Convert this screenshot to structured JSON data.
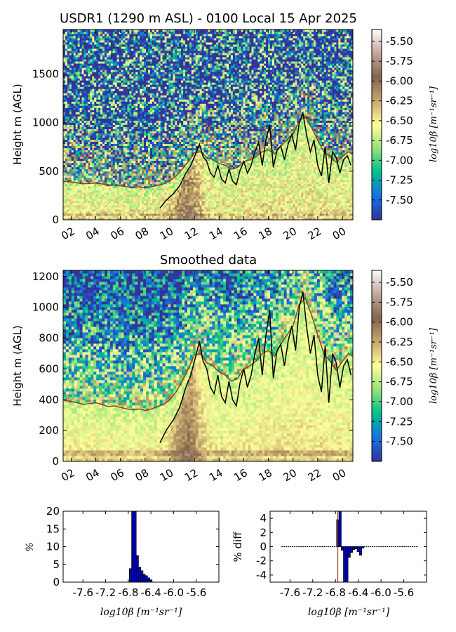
{
  "colors": {
    "colormap": [
      "#333399",
      "#1672e4",
      "#00c08a",
      "#95e17a",
      "#ffff99",
      "#c8a86e",
      "#82654e",
      "#c2a79d",
      "#fdfcfc"
    ],
    "bl_brown": "#8b4513",
    "bl_black": "#000000",
    "hist_fill": "#0000cc"
  },
  "chart_data": [
    {
      "type": "heatmap",
      "title": "USDR1 (1290 m ASL) - 0100 Local 15 Apr 2025",
      "ylabel": "Height m (AGL)",
      "xticks": [
        "02",
        "04",
        "06",
        "08",
        "10",
        "12",
        "14",
        "16",
        "18",
        "20",
        "22",
        "00"
      ],
      "yticks": [
        "0",
        "500",
        "1000",
        "1500"
      ],
      "ylim": [
        0,
        1960
      ],
      "xlim_hours": [
        1.35,
        24.85
      ],
      "colorbar": {
        "label": "log10β [m⁻¹sr⁻¹]",
        "range": [
          -7.75,
          -5.35
        ],
        "ticks": [
          "-5.50",
          "-5.75",
          "-6.00",
          "-6.25",
          "-6.50",
          "-6.75",
          "-7.00",
          "-7.25",
          "-7.50"
        ]
      },
      "series": [
        {
          "values": [
            [
              1.4,
              395
            ],
            [
              2,
              390
            ],
            [
              2.5,
              380
            ],
            [
              3,
              370
            ],
            [
              3.5,
              375
            ],
            [
              4,
              380
            ],
            [
              4.5,
              370
            ],
            [
              5,
              355
            ],
            [
              5.5,
              360
            ],
            [
              6,
              350
            ],
            [
              6.5,
              340
            ],
            [
              7,
              335
            ],
            [
              7.5,
              340
            ],
            [
              8,
              330
            ],
            [
              8.5,
              340
            ],
            [
              9,
              355
            ],
            [
              9.5,
              370
            ],
            [
              10,
              400
            ],
            [
              10.5,
              450
            ],
            [
              11,
              520
            ],
            [
              11.5,
              600
            ],
            [
              12,
              690
            ],
            [
              12.5,
              700
            ],
            [
              13,
              640
            ],
            [
              13.5,
              620
            ],
            [
              14,
              580
            ],
            [
              14.5,
              560
            ],
            [
              15,
              520
            ],
            [
              15.5,
              540
            ],
            [
              16,
              600
            ],
            [
              16.5,
              620
            ],
            [
              17,
              650
            ],
            [
              17.5,
              700
            ],
            [
              18,
              720
            ],
            [
              18.5,
              680
            ],
            [
              19,
              760
            ],
            [
              19.5,
              820
            ],
            [
              20,
              880
            ],
            [
              20.5,
              1020
            ],
            [
              21,
              1060
            ],
            [
              21.5,
              950
            ],
            [
              22,
              820
            ],
            [
              22.5,
              700
            ],
            [
              23,
              650
            ],
            [
              23.5,
              590
            ],
            [
              24,
              650
            ],
            [
              24.5,
              700
            ],
            [
              24.85,
              680
            ]
          ]
        },
        {
          "values": [
            [
              9.2,
              120
            ],
            [
              9.7,
              200
            ],
            [
              10.3,
              270
            ],
            [
              10.8,
              350
            ],
            [
              11.3,
              480
            ],
            [
              11.7,
              560
            ],
            [
              12.1,
              680
            ],
            [
              12.4,
              780
            ],
            [
              12.7,
              650
            ],
            [
              13,
              600
            ],
            [
              13.3,
              480
            ],
            [
              13.6,
              440
            ],
            [
              13.9,
              560
            ],
            [
              14.2,
              420
            ],
            [
              14.5,
              380
            ],
            [
              14.8,
              520
            ],
            [
              15.1,
              400
            ],
            [
              15.4,
              360
            ],
            [
              15.7,
              510
            ],
            [
              16,
              600
            ],
            [
              16.3,
              480
            ],
            [
              16.6,
              560
            ],
            [
              16.9,
              700
            ],
            [
              17.2,
              800
            ],
            [
              17.5,
              560
            ],
            [
              17.8,
              820
            ],
            [
              18.1,
              980
            ],
            [
              18.4,
              540
            ],
            [
              18.7,
              720
            ],
            [
              19,
              760
            ],
            [
              19.3,
              620
            ],
            [
              19.6,
              780
            ],
            [
              19.9,
              880
            ],
            [
              20.2,
              720
            ],
            [
              20.5,
              1000
            ],
            [
              20.8,
              1100
            ],
            [
              21.1,
              870
            ],
            [
              21.4,
              700
            ],
            [
              21.7,
              820
            ],
            [
              22,
              560
            ],
            [
              22.3,
              450
            ],
            [
              22.6,
              750
            ],
            [
              22.9,
              380
            ],
            [
              23.2,
              700
            ],
            [
              23.5,
              640
            ],
            [
              23.8,
              480
            ],
            [
              24.1,
              620
            ],
            [
              24.4,
              660
            ],
            [
              24.7,
              560
            ]
          ]
        }
      ]
    },
    {
      "type": "heatmap",
      "title": "Smoothed data",
      "ylabel": "Height m (AGL)",
      "xticks": [
        "02",
        "04",
        "06",
        "08",
        "10",
        "12",
        "14",
        "16",
        "18",
        "20",
        "22",
        "00"
      ],
      "yticks": [
        "0",
        "200",
        "400",
        "600",
        "800",
        "1000",
        "1200"
      ],
      "ylim": [
        0,
        1240
      ],
      "xlim_hours": [
        1.35,
        24.85
      ],
      "colorbar": {
        "label": "log10β [m⁻¹sr⁻¹]",
        "range": [
          -7.75,
          -5.35
        ],
        "ticks": [
          "-5.50",
          "-5.75",
          "-6.00",
          "-6.25",
          "-6.50",
          "-6.75",
          "-7.00",
          "-7.25",
          "-7.50"
        ]
      },
      "series": [
        {
          "values": [
            [
              1.4,
              395
            ],
            [
              2,
              390
            ],
            [
              2.5,
              380
            ],
            [
              3,
              370
            ],
            [
              3.5,
              375
            ],
            [
              4,
              380
            ],
            [
              4.5,
              370
            ],
            [
              5,
              355
            ],
            [
              5.5,
              360
            ],
            [
              6,
              350
            ],
            [
              6.5,
              340
            ],
            [
              7,
              335
            ],
            [
              7.5,
              340
            ],
            [
              8,
              330
            ],
            [
              8.5,
              340
            ],
            [
              9,
              355
            ],
            [
              9.5,
              370
            ],
            [
              10,
              400
            ],
            [
              10.5,
              450
            ],
            [
              11,
              520
            ],
            [
              11.5,
              600
            ],
            [
              12,
              690
            ],
            [
              12.5,
              700
            ],
            [
              13,
              640
            ],
            [
              13.5,
              620
            ],
            [
              14,
              580
            ],
            [
              14.5,
              560
            ],
            [
              15,
              520
            ],
            [
              15.5,
              540
            ],
            [
              16,
              600
            ],
            [
              16.5,
              620
            ],
            [
              17,
              650
            ],
            [
              17.5,
              700
            ],
            [
              18,
              720
            ],
            [
              18.5,
              680
            ],
            [
              19,
              760
            ],
            [
              19.5,
              820
            ],
            [
              20,
              880
            ],
            [
              20.5,
              1020
            ],
            [
              21,
              1060
            ],
            [
              21.5,
              950
            ],
            [
              22,
              820
            ],
            [
              22.5,
              700
            ],
            [
              23,
              650
            ],
            [
              23.5,
              590
            ],
            [
              24,
              650
            ],
            [
              24.5,
              700
            ],
            [
              24.85,
              680
            ]
          ]
        },
        {
          "values": [
            [
              9.2,
              120
            ],
            [
              9.7,
              200
            ],
            [
              10.3,
              270
            ],
            [
              10.8,
              350
            ],
            [
              11.3,
              480
            ],
            [
              11.7,
              560
            ],
            [
              12.1,
              680
            ],
            [
              12.4,
              780
            ],
            [
              12.7,
              650
            ],
            [
              13,
              600
            ],
            [
              13.3,
              480
            ],
            [
              13.6,
              440
            ],
            [
              13.9,
              560
            ],
            [
              14.2,
              420
            ],
            [
              14.5,
              380
            ],
            [
              14.8,
              520
            ],
            [
              15.1,
              400
            ],
            [
              15.4,
              360
            ],
            [
              15.7,
              510
            ],
            [
              16,
              600
            ],
            [
              16.3,
              480
            ],
            [
              16.6,
              560
            ],
            [
              16.9,
              700
            ],
            [
              17.2,
              800
            ],
            [
              17.5,
              560
            ],
            [
              17.8,
              820
            ],
            [
              18.1,
              980
            ],
            [
              18.4,
              540
            ],
            [
              18.7,
              720
            ],
            [
              19,
              760
            ],
            [
              19.3,
              620
            ],
            [
              19.6,
              780
            ],
            [
              19.9,
              880
            ],
            [
              20.2,
              720
            ],
            [
              20.5,
              1000
            ],
            [
              20.8,
              1100
            ],
            [
              21.1,
              870
            ],
            [
              21.4,
              700
            ],
            [
              21.7,
              820
            ],
            [
              22,
              560
            ],
            [
              22.3,
              450
            ],
            [
              22.6,
              750
            ],
            [
              22.9,
              380
            ],
            [
              23.2,
              700
            ],
            [
              23.5,
              640
            ],
            [
              23.8,
              480
            ],
            [
              24.1,
              620
            ],
            [
              24.4,
              660
            ],
            [
              24.7,
              560
            ]
          ]
        }
      ]
    },
    {
      "type": "bar",
      "xlabel": "log10β [m⁻¹sr⁻¹]",
      "ylabel": "%",
      "xlim": [
        -7.95,
        -5.2
      ],
      "ylim": [
        0,
        20
      ],
      "xticks": [
        "-7.6",
        "-7.2",
        "-6.8",
        "-6.4",
        "-6.0",
        "-5.6"
      ],
      "yticks": [
        "0",
        "5",
        "10",
        "15",
        "20"
      ],
      "bin_width": 0.04,
      "x": [
        -6.78,
        -6.74,
        -6.7,
        -6.66,
        -6.62,
        -6.58,
        -6.54,
        -6.5,
        -6.46,
        -6.42
      ],
      "values": [
        3.8,
        20,
        20,
        7.5,
        4.2,
        3.2,
        2.2,
        1.8,
        1.2,
        0.6
      ]
    },
    {
      "type": "bar",
      "xlabel": "log10β [m⁻¹sr⁻¹]",
      "ylabel": "% diff",
      "xlim": [
        -7.95,
        -5.2
      ],
      "ylim": [
        -5,
        5
      ],
      "xticks": [
        "-7.6",
        "-7.2",
        "-6.8",
        "-6.4",
        "-6.0",
        "-5.6"
      ],
      "yticks": [
        "4",
        "2",
        "0",
        "-2",
        "-4"
      ],
      "bin_width": 0.04,
      "zero_line_xrange": [
        -7.75,
        -5.35
      ],
      "marker_x": -6.76,
      "x": [
        -6.78,
        -6.74,
        -6.7,
        -6.66,
        -6.62,
        -6.58,
        -6.54,
        -6.5,
        -6.46,
        -6.42,
        -6.38,
        -6.34
      ],
      "values": [
        3.8,
        5,
        -0.5,
        -5,
        -5,
        -1.5,
        -0.8,
        -0.4,
        -0.3,
        -0.7,
        -1.2,
        -0.2
      ]
    }
  ]
}
